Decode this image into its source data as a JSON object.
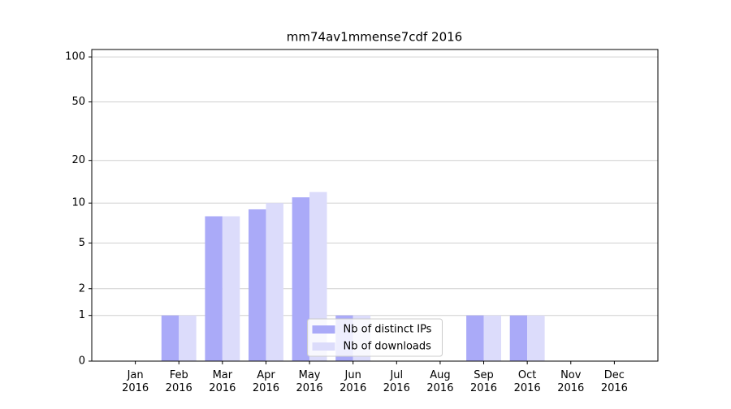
{
  "chart_data": {
    "type": "bar",
    "title": "mm74av1mmense7cdf 2016",
    "categories": [
      "Jan\n2016",
      "Feb\n2016",
      "Mar\n2016",
      "Apr\n2016",
      "May\n2016",
      "Jun\n2016",
      "Jul\n2016",
      "Aug\n2016",
      "Sep\n2016",
      "Oct\n2016",
      "Nov\n2016",
      "Dec\n2016"
    ],
    "series": [
      {
        "name": "Nb of distinct IPs",
        "color": "#aaaaf8",
        "values": [
          0,
          1,
          8,
          9,
          11,
          1,
          0,
          0,
          1,
          1,
          0,
          0
        ]
      },
      {
        "name": "Nb of downloads",
        "color": "#dcdcfb",
        "values": [
          0,
          1,
          8,
          10,
          12,
          1,
          0,
          0,
          1,
          1,
          0,
          0
        ]
      }
    ],
    "yscale": "log1p",
    "ylim": [
      0,
      112
    ],
    "yticks": [
      0,
      1,
      2,
      5,
      10,
      20,
      50,
      100
    ],
    "grid": true,
    "legend": "lower center"
  }
}
